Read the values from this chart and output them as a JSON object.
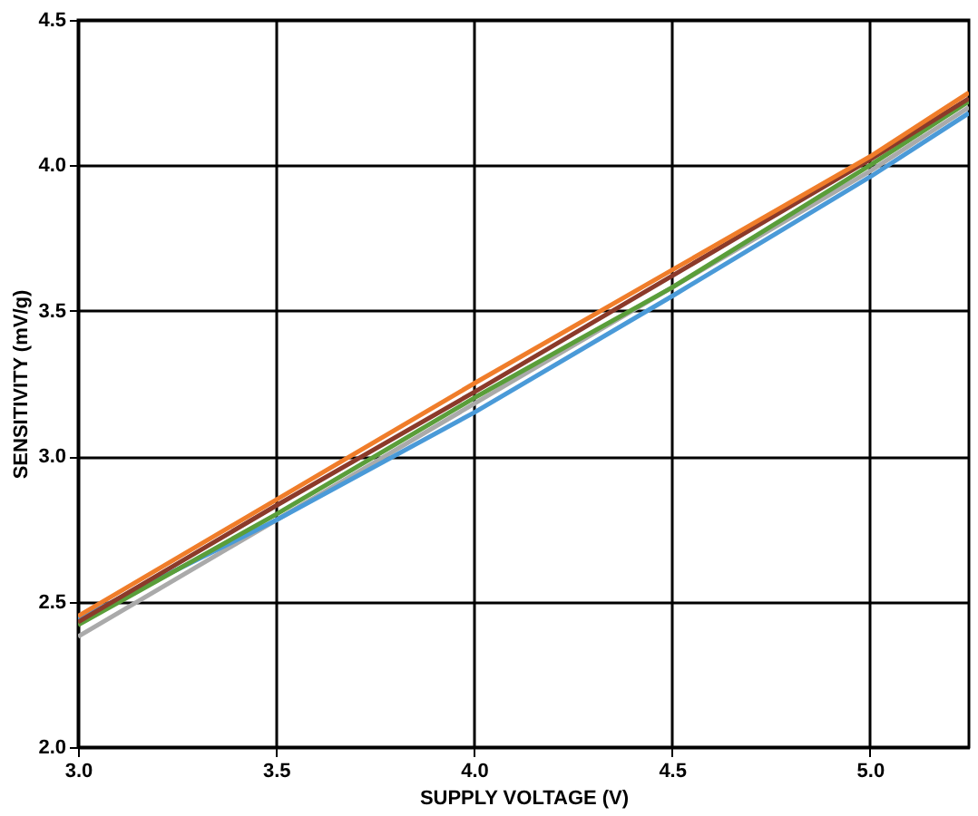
{
  "chart_data": {
    "type": "line",
    "xlabel": "SUPPLY VOLTAGE (V)",
    "ylabel": "SENSITIVITY (mV/g)",
    "x": [
      3.0,
      3.5,
      4.0,
      4.5,
      5.0,
      5.25
    ],
    "series": [
      {
        "color": "#aaaaaa",
        "values": [
          2.38,
          2.78,
          3.18,
          3.58,
          3.98,
          4.2
        ]
      },
      {
        "color": "#4a9ad8",
        "values": [
          2.44,
          2.78,
          3.15,
          3.55,
          3.96,
          4.18
        ]
      },
      {
        "color": "#5a9e3a",
        "values": [
          2.42,
          2.8,
          3.2,
          3.58,
          4.0,
          4.22
        ]
      },
      {
        "color": "#8b3a2a",
        "values": [
          2.43,
          2.83,
          3.22,
          3.62,
          4.02,
          4.23
        ]
      },
      {
        "color": "#f07d2a",
        "values": [
          2.45,
          2.85,
          3.25,
          3.64,
          4.03,
          4.25
        ]
      }
    ],
    "xlim": [
      3.0,
      5.25
    ],
    "ylim": [
      2.0,
      4.5
    ],
    "xticks": [
      {
        "value": 3.0,
        "label": "3.0"
      },
      {
        "value": 3.5,
        "label": "3.5"
      },
      {
        "value": 4.0,
        "label": "4.0"
      },
      {
        "value": 4.5,
        "label": "4.5"
      },
      {
        "value": 5.0,
        "label": "5.0"
      }
    ],
    "yticks": [
      {
        "value": 2.0,
        "label": "2.0"
      },
      {
        "value": 2.5,
        "label": "2.5"
      },
      {
        "value": 3.0,
        "label": "3.0"
      },
      {
        "value": 3.5,
        "label": "3.5"
      },
      {
        "value": 4.0,
        "label": "4.0"
      },
      {
        "value": 4.5,
        "label": "4.5"
      }
    ],
    "grid": true,
    "legend": false,
    "marker": "none",
    "line_style": "solid"
  }
}
